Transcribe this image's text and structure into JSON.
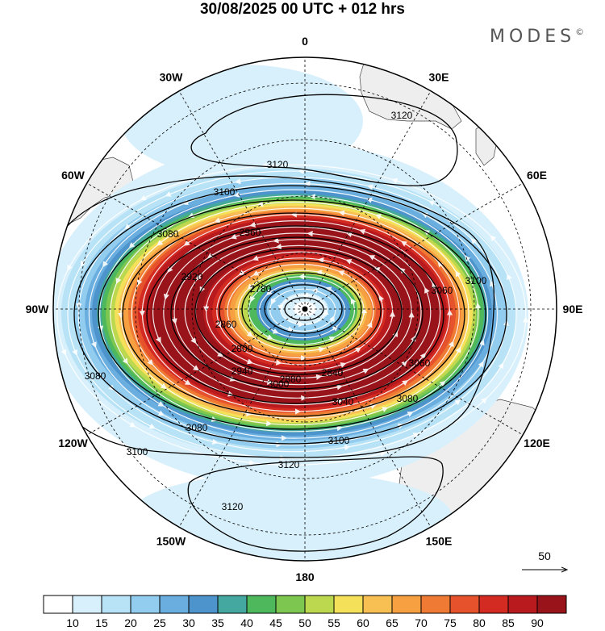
{
  "header": {
    "title": "30/08/2025  00 UTC  + 012 hrs",
    "brand": "MODES",
    "brand_mark": "©"
  },
  "map": {
    "projection": "polar-stereographic-south",
    "longitude_labels": [
      {
        "lon": 0,
        "text": "0"
      },
      {
        "lon": 30,
        "text": "30E"
      },
      {
        "lon": 60,
        "text": "60E"
      },
      {
        "lon": 90,
        "text": "90E"
      },
      {
        "lon": 120,
        "text": "120E"
      },
      {
        "lon": 150,
        "text": "150E"
      },
      {
        "lon": 180,
        "text": "180"
      },
      {
        "lon": -150,
        "text": "150W"
      },
      {
        "lon": -120,
        "text": "120W"
      },
      {
        "lon": -90,
        "text": "90W"
      },
      {
        "lon": -60,
        "text": "60W"
      },
      {
        "lon": -30,
        "text": "30W"
      }
    ],
    "contour_labels": [
      "3120",
      "3120",
      "3120",
      "3120",
      "3100",
      "3100",
      "3100",
      "3100",
      "3080",
      "3080",
      "3080",
      "3080",
      "3060",
      "3060",
      "3040",
      "3000",
      "2960",
      "2940",
      "2920",
      "2880",
      "2860",
      "2840",
      "2800",
      "2780"
    ],
    "vector_reference": "50",
    "colors": {
      "land": "#eeeeee",
      "coast": "#444444",
      "grid": "#000000",
      "contour": "#000000",
      "streamline": "#ffffff"
    }
  },
  "colorbar": {
    "ticks": [
      "10",
      "15",
      "20",
      "25",
      "30",
      "35",
      "40",
      "45",
      "50",
      "55",
      "60",
      "65",
      "70",
      "75",
      "80",
      "85",
      "90"
    ],
    "colors": [
      "#ffffff",
      "#d8f0fb",
      "#b8e3f7",
      "#92ccee",
      "#6aaee0",
      "#4d93cc",
      "#45a8a0",
      "#4db85c",
      "#7dc650",
      "#bcd84e",
      "#f5e05a",
      "#f8c052",
      "#f6a042",
      "#ef7a34",
      "#e5522c",
      "#d32a22",
      "#b81a1e",
      "#98141a"
    ]
  }
}
